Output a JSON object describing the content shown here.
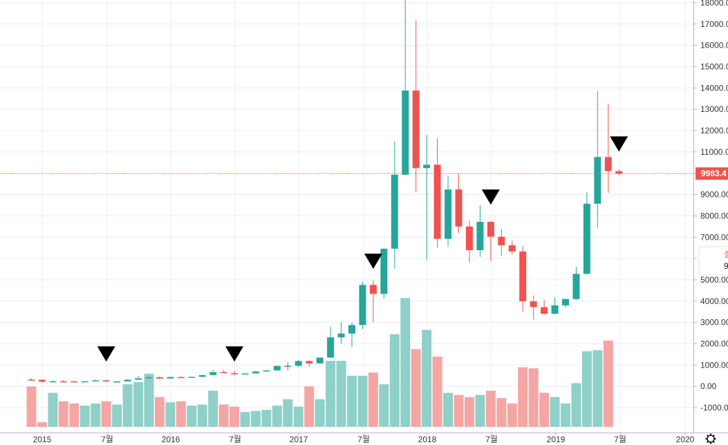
{
  "chart_data": {
    "type": "candlestick",
    "x_ticks": [
      "2015",
      "7월",
      "2016",
      "7월",
      "2017",
      "7월",
      "2018",
      "7월",
      "2019",
      "7월",
      "2020"
    ],
    "y_ticks": [
      "18000.00",
      "17000.00",
      "16000.00",
      "15000.00",
      "14000.00",
      "13000.00",
      "12000.00",
      "11000.00",
      "10000.00",
      "9000.00",
      "8000.00",
      "7000.00",
      "6000.00",
      "5000.00",
      "4000.00",
      "3000.00",
      "2000.00",
      "1000.00",
      "0.00",
      "-1000.00"
    ],
    "ylim": [
      -1900,
      18100
    ],
    "grid": true,
    "current_price": 9983.4,
    "current_price_label": "9983.4",
    "side_panel": {
      "line1": "실",
      "line2": "9"
    },
    "colors": {
      "up": "#26a69a",
      "down": "#ef5350",
      "up_volume": "#8fd0c8",
      "down_volume": "#f4a6a4",
      "marker": "#000000"
    },
    "candles": [
      {
        "o": 320,
        "h": 380,
        "l": 260,
        "c": 310,
        "v": 0
      },
      {
        "o": 310,
        "h": 330,
        "l": 160,
        "c": 220,
        "v": -1680
      },
      {
        "o": 220,
        "h": 290,
        "l": 200,
        "c": 240,
        "v": -300
      },
      {
        "o": 240,
        "h": 300,
        "l": 220,
        "c": 235,
        "v": -700
      },
      {
        "o": 235,
        "h": 265,
        "l": 215,
        "c": 230,
        "v": -800
      },
      {
        "o": 230,
        "h": 260,
        "l": 210,
        "c": 240,
        "v": -900
      },
      {
        "o": 240,
        "h": 320,
        "l": 230,
        "c": 285,
        "v": -800
      },
      {
        "o": 285,
        "h": 300,
        "l": 210,
        "c": 230,
        "v": -700
      },
      {
        "o": 230,
        "h": 260,
        "l": 225,
        "c": 235,
        "v": -850
      },
      {
        "o": 235,
        "h": 330,
        "l": 235,
        "c": 315,
        "v": 100
      },
      {
        "o": 315,
        "h": 500,
        "l": 315,
        "c": 380,
        "v": 200
      },
      {
        "o": 380,
        "h": 470,
        "l": 360,
        "c": 430,
        "v": 600
      },
      {
        "o": 430,
        "h": 470,
        "l": 355,
        "c": 370,
        "v": -500
      },
      {
        "o": 370,
        "h": 450,
        "l": 365,
        "c": 440,
        "v": -750
      },
      {
        "o": 440,
        "h": 470,
        "l": 380,
        "c": 415,
        "v": -700
      },
      {
        "o": 415,
        "h": 460,
        "l": 410,
        "c": 450,
        "v": -900
      },
      {
        "o": 450,
        "h": 540,
        "l": 445,
        "c": 530,
        "v": -850
      },
      {
        "o": 530,
        "h": 780,
        "l": 520,
        "c": 670,
        "v": -200
      },
      {
        "o": 670,
        "h": 770,
        "l": 640,
        "c": 620,
        "v": -850
      },
      {
        "o": 620,
        "h": 720,
        "l": 510,
        "c": 575,
        "v": -950
      },
      {
        "o": 575,
        "h": 630,
        "l": 565,
        "c": 610,
        "v": -1200
      },
      {
        "o": 610,
        "h": 730,
        "l": 600,
        "c": 700,
        "v": -1150
      },
      {
        "o": 700,
        "h": 760,
        "l": 690,
        "c": 750,
        "v": -1100
      },
      {
        "o": 750,
        "h": 980,
        "l": 750,
        "c": 960,
        "v": -900
      },
      {
        "o": 960,
        "h": 1150,
        "l": 740,
        "c": 965,
        "v": -600
      },
      {
        "o": 965,
        "h": 1250,
        "l": 915,
        "c": 1190,
        "v": -950
      },
      {
        "o": 1190,
        "h": 1220,
        "l": 930,
        "c": 1080,
        "v": 0
      },
      {
        "o": 1080,
        "h": 1350,
        "l": 1060,
        "c": 1350,
        "v": -600
      },
      {
        "o": 1350,
        "h": 2800,
        "l": 1340,
        "c": 2300,
        "v": 1200
      },
      {
        "o": 2300,
        "h": 3000,
        "l": 2000,
        "c": 2480,
        "v": 1200
      },
      {
        "o": 2480,
        "h": 3000,
        "l": 1840,
        "c": 2880,
        "v": 500
      },
      {
        "o": 2880,
        "h": 4920,
        "l": 2700,
        "c": 4760,
        "v": 500
      },
      {
        "o": 4760,
        "h": 4980,
        "l": 3000,
        "c": 4340,
        "v": 650
      },
      {
        "o": 4340,
        "h": 6470,
        "l": 4110,
        "c": 6460,
        "v": 100
      },
      {
        "o": 6460,
        "h": 11500,
        "l": 5520,
        "c": 9930,
        "v": 2450
      },
      {
        "o": 9930,
        "h": 19000,
        "l": 9900,
        "c": 13880,
        "v": 4150
      },
      {
        "o": 13880,
        "h": 17170,
        "l": 9100,
        "c": 10240,
        "v": 1750
      },
      {
        "o": 10240,
        "h": 11790,
        "l": 5950,
        "c": 10400,
        "v": 2650
      },
      {
        "o": 10400,
        "h": 11650,
        "l": 6520,
        "c": 6920,
        "v": 1400
      },
      {
        "o": 6920,
        "h": 9850,
        "l": 6550,
        "c": 9240,
        "v": -300
      },
      {
        "o": 9240,
        "h": 9990,
        "l": 7200,
        "c": 7500,
        "v": -400
      },
      {
        "o": 7500,
        "h": 7790,
        "l": 5800,
        "c": 6390,
        "v": -500
      },
      {
        "o": 6390,
        "h": 8490,
        "l": 6080,
        "c": 7720,
        "v": -400
      },
      {
        "o": 7720,
        "h": 7750,
        "l": 5880,
        "c": 7020,
        "v": -200
      },
      {
        "o": 7020,
        "h": 7380,
        "l": 6120,
        "c": 6620,
        "v": -550
      },
      {
        "o": 6620,
        "h": 6840,
        "l": 6190,
        "c": 6330,
        "v": -800
      },
      {
        "o": 6330,
        "h": 6580,
        "l": 3500,
        "c": 3990,
        "v": 900
      },
      {
        "o": 3990,
        "h": 4270,
        "l": 3150,
        "c": 3720,
        "v": 850
      },
      {
        "o": 3720,
        "h": 4050,
        "l": 3360,
        "c": 3410,
        "v": -300
      },
      {
        "o": 3410,
        "h": 4180,
        "l": 3370,
        "c": 3800,
        "v": -500
      },
      {
        "o": 3800,
        "h": 4120,
        "l": 3700,
        "c": 4100,
        "v": -800
      },
      {
        "o": 4100,
        "h": 5620,
        "l": 4040,
        "c": 5280,
        "v": 150
      },
      {
        "o": 5280,
        "h": 9100,
        "l": 5250,
        "c": 8570,
        "v": 1650
      },
      {
        "o": 8570,
        "h": 13860,
        "l": 7450,
        "c": 10760,
        "v": 1700
      },
      {
        "o": 10760,
        "h": 13240,
        "l": 9080,
        "c": 10100,
        "v": 2150
      },
      {
        "o": 10100,
        "h": 10200,
        "l": 9900,
        "c": 9980,
        "v": null
      }
    ],
    "markers": [
      {
        "index": 7,
        "price": 1100
      },
      {
        "index": 19,
        "price": 1100
      },
      {
        "index": 32,
        "price": 5450
      },
      {
        "index": 43,
        "price": 8460
      },
      {
        "index": 55,
        "price": 10950
      }
    ]
  }
}
